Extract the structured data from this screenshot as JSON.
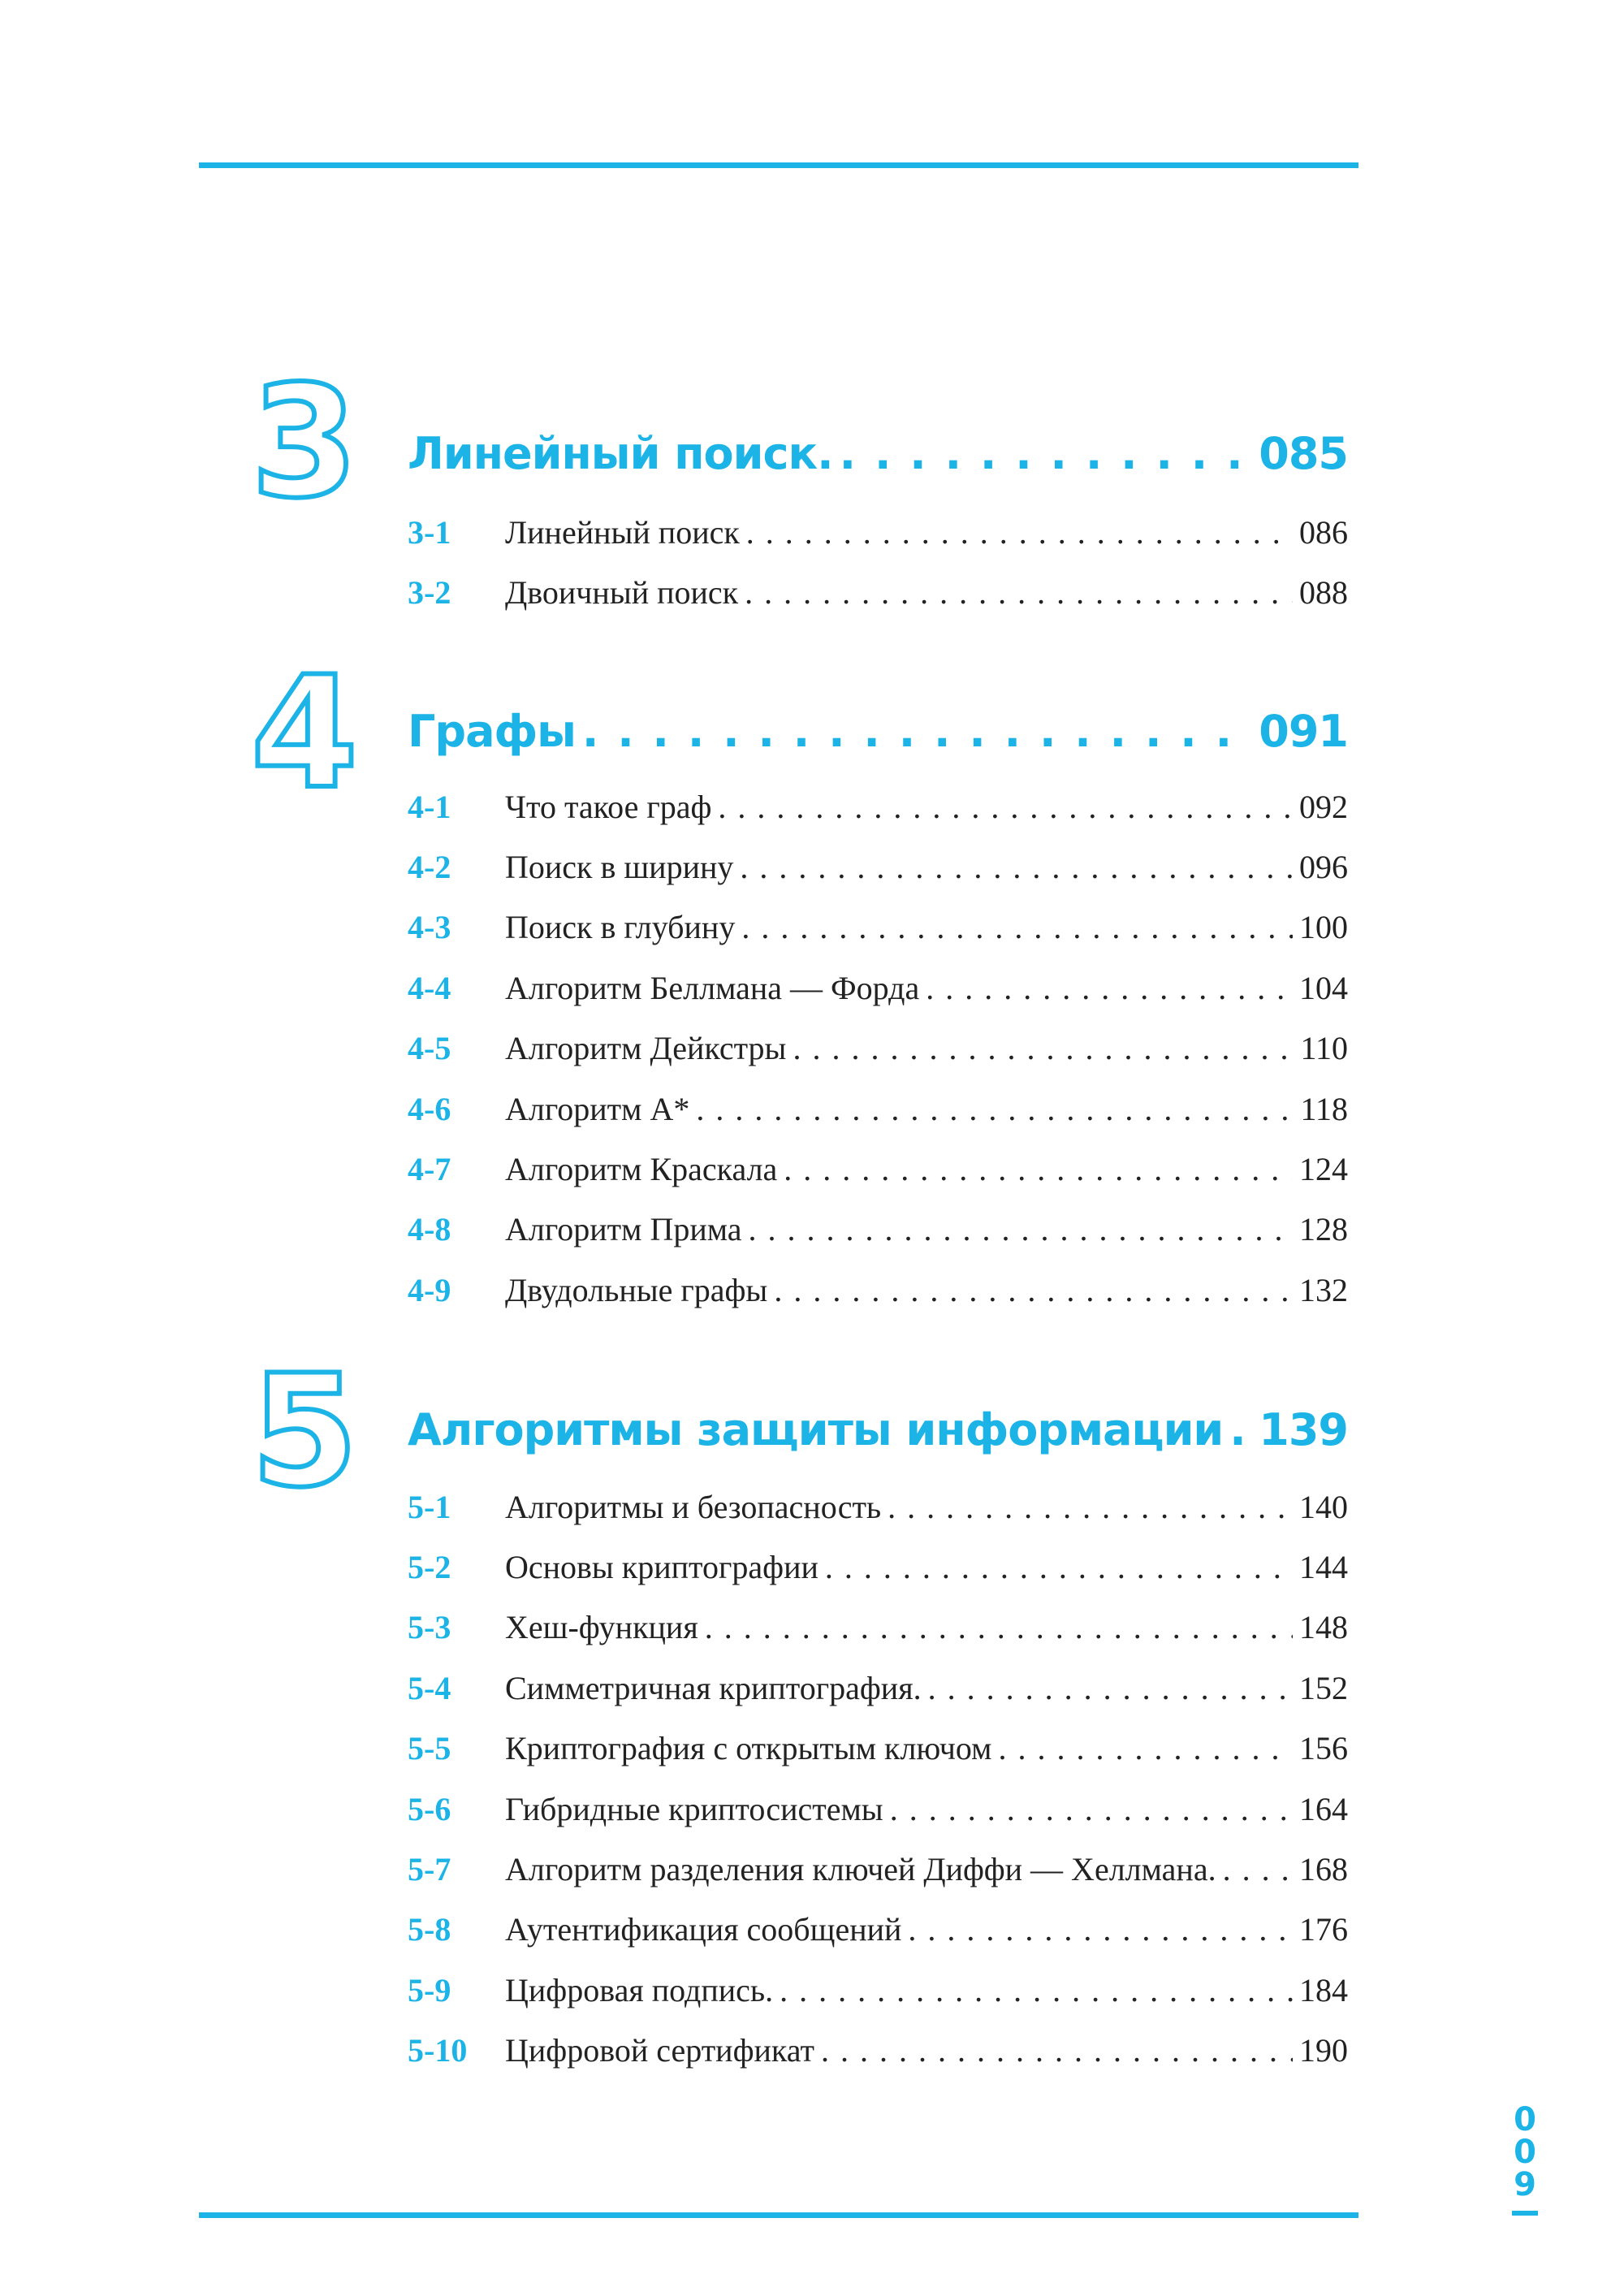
{
  "accent_color": "#1cb4e6",
  "chapters": [
    {
      "number": "3",
      "title": "Линейный поиск.",
      "page": "085",
      "entries": [
        {
          "code": "3-1",
          "title": "Линейный поиск",
          "page": "086"
        },
        {
          "code": "3-2",
          "title": "Двоичный поиск",
          "page": "088"
        }
      ]
    },
    {
      "number": "4",
      "title": "Графы",
      "page": "091",
      "entries": [
        {
          "code": "4-1",
          "title": "Что такое граф",
          "page": "092"
        },
        {
          "code": "4-2",
          "title": "Поиск в ширину",
          "page": "096"
        },
        {
          "code": "4-3",
          "title": "Поиск в глубину",
          "page": "100"
        },
        {
          "code": "4-4",
          "title": "Алгоритм Беллмана — Форда",
          "page": "104"
        },
        {
          "code": "4-5",
          "title": "Алгоритм Дейкстры",
          "page": "110"
        },
        {
          "code": "4-6",
          "title": "Алгоритм A*",
          "page": "118"
        },
        {
          "code": "4-7",
          "title": "Алгоритм Краскала",
          "page": "124"
        },
        {
          "code": "4-8",
          "title": "Алгоритм Прима",
          "page": "128"
        },
        {
          "code": "4-9",
          "title": "Двудольные графы",
          "page": "132"
        }
      ]
    },
    {
      "number": "5",
      "title": "Алгоритмы защиты информации",
      "page": "139",
      "entries": [
        {
          "code": "5-1",
          "title": "Алгоритмы и безопасность",
          "page": "140"
        },
        {
          "code": "5-2",
          "title": "Основы криптографии",
          "page": "144"
        },
        {
          "code": "5-3",
          "title": "Хеш-функция",
          "page": "148"
        },
        {
          "code": "5-4",
          "title": "Симметричная криптография.",
          "page": "152"
        },
        {
          "code": "5-5",
          "title": "Криптография с открытым ключом",
          "page": "156"
        },
        {
          "code": "5-6",
          "title": "Гибридные криптосистемы",
          "page": "164"
        },
        {
          "code": "5-7",
          "title": "Алгоритм разделения ключей Диффи — Хеллмана.",
          "page": "168"
        },
        {
          "code": "5-8",
          "title": "Аутентификация сообщений",
          "page": "176"
        },
        {
          "code": "5-9",
          "title": "Цифровая подпись.",
          "page": "184"
        },
        {
          "code": "5-10",
          "title": "Цифровой сертификат",
          "page": "190"
        }
      ]
    }
  ],
  "page_number": [
    "0",
    "0",
    "9"
  ]
}
